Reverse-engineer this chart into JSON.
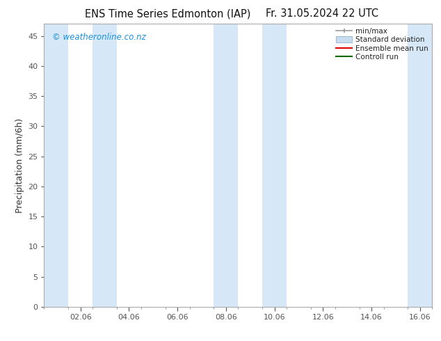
{
  "title_left": "ENS Time Series Edmonton (IAP)",
  "title_right": "Fr. 31.05.2024 22 UTC",
  "ylabel": "Precipitation (mm/6h)",
  "xlim": [
    0.5,
    16.5
  ],
  "ylim": [
    0,
    47
  ],
  "yticks": [
    0,
    5,
    10,
    15,
    20,
    25,
    30,
    35,
    40,
    45
  ],
  "xtick_labels": [
    "02.06",
    "04.06",
    "06.06",
    "08.06",
    "10.06",
    "12.06",
    "14.06",
    "16.06"
  ],
  "xtick_positions": [
    2,
    4,
    6,
    8,
    10,
    12,
    14,
    16
  ],
  "watermark": "© weatheronline.co.nz",
  "watermark_color": "#1a8fdb",
  "background_color": "#ffffff",
  "plot_bg_color": "#ffffff",
  "shaded_bands": [
    [
      0.5,
      1.5
    ],
    [
      2.5,
      3.5
    ],
    [
      7.5,
      8.5
    ],
    [
      9.5,
      10.5
    ],
    [
      15.5,
      16.5
    ]
  ],
  "shaded_color": "#D6E8F8",
  "legend_labels": [
    "min/max",
    "Standard deviation",
    "Ensemble mean run",
    "Controll run"
  ],
  "minmax_color": "#999999",
  "std_color": "#c8ddf0",
  "std_edge_color": "#a0bbd0",
  "ens_color": "#dd0000",
  "ctrl_color": "#006600",
  "title_fontsize": 10.5,
  "axis_label_fontsize": 9,
  "tick_fontsize": 8,
  "watermark_fontsize": 8.5,
  "legend_fontsize": 7.5
}
